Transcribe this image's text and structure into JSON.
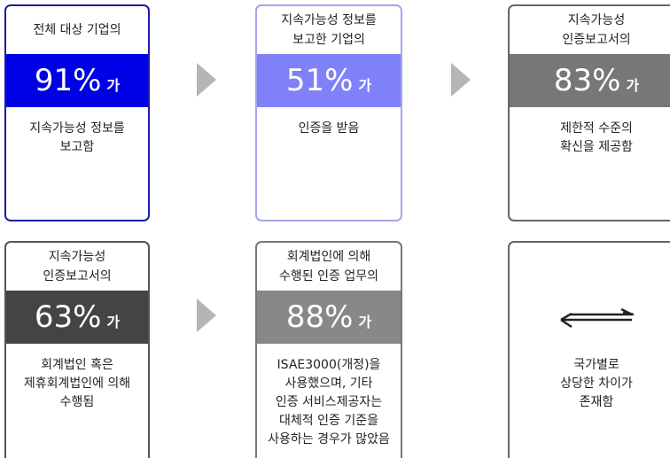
{
  "cards": [
    {
      "top": [
        "전체 대상 기업의"
      ],
      "value": "91%",
      "suffix": "가",
      "bottom": [
        "지속가능성 정보를",
        "보고함"
      ]
    },
    {
      "top": [
        "지속가능성 정보를",
        "보고한 기업의"
      ],
      "value": "51%",
      "suffix": "가",
      "bottom": [
        "인증을 받음"
      ]
    },
    {
      "top": [
        "지속가능성",
        "인증보고서의"
      ],
      "value": "83%",
      "suffix": "가",
      "bottom": [
        "제한적 수준의",
        "확신을 제공함"
      ]
    },
    {
      "top": [
        "지속가능성",
        "인증보고서의"
      ],
      "value": "63%",
      "suffix": "가",
      "bottom": [
        "회계법인 혹은",
        "제휴회계법인에 의해",
        "수행됨"
      ]
    },
    {
      "top": [
        "회계법인에 의해",
        "수행된 인증 업무의"
      ],
      "value": "88%",
      "suffix": "가",
      "bottom": [
        "ISAE3000(개정)을",
        "사용했으며, 기타",
        "인증 서비스제공자는",
        "대체적 인증 기준을",
        "사용하는 경우가 많았음"
      ]
    },
    {
      "top": [],
      "bottom": [
        "국가별로",
        "상당한 차이가",
        "존재함"
      ]
    }
  ]
}
